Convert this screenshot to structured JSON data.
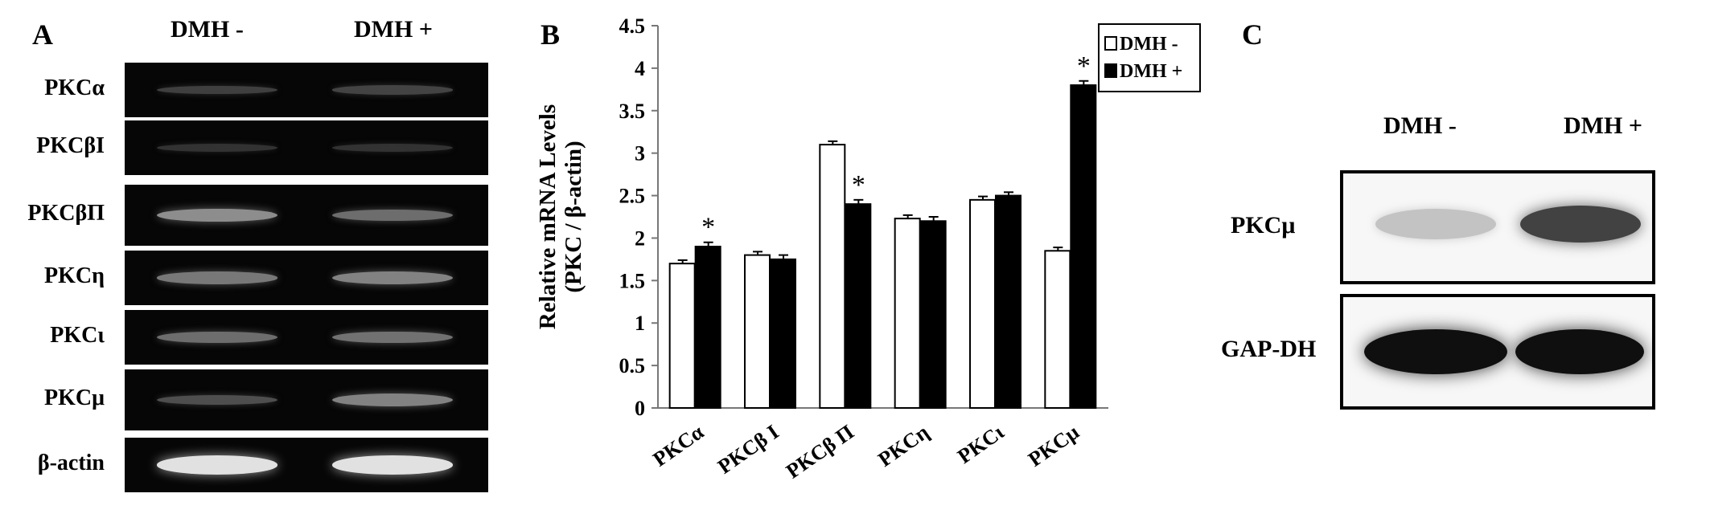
{
  "panel_a": {
    "letter": "A",
    "col_headers": [
      "DMH -",
      "DMH +"
    ],
    "rows": [
      {
        "label": "PKCα",
        "intensity": [
          0.18,
          0.2
        ]
      },
      {
        "label": "PKCβI",
        "intensity": [
          0.12,
          0.12
        ]
      },
      {
        "label": "PKCβΠ",
        "intensity": [
          0.55,
          0.4
        ]
      },
      {
        "label": "PKCη",
        "intensity": [
          0.45,
          0.5
        ]
      },
      {
        "label": "PKCι",
        "intensity": [
          0.4,
          0.42
        ]
      },
      {
        "label": "PKCμ",
        "intensity": [
          0.25,
          0.5
        ]
      },
      {
        "label": "β-actin",
        "intensity": [
          0.95,
          0.95
        ]
      }
    ]
  },
  "panel_b": {
    "letter": "B"
  },
  "chart_data": {
    "type": "bar",
    "title": "",
    "xlabel": "",
    "ylabel": "Relative mRNA Levels",
    "ylabel2": "(PKC / β-actin)",
    "ylim": [
      0,
      4.5
    ],
    "yticks": [
      0,
      0.5,
      1,
      1.5,
      2,
      2.5,
      3,
      3.5,
      4,
      4.5
    ],
    "categories": [
      "PKCα",
      "PKCβ I",
      "PKCβ Π",
      "PKCη",
      "PKCι",
      "PKCμ"
    ],
    "series": [
      {
        "name": "DMH -",
        "fill": "#ffffff",
        "values": [
          1.7,
          1.8,
          3.1,
          2.23,
          2.45,
          1.85
        ],
        "errors": [
          0.04,
          0.04,
          0.04,
          0.04,
          0.04,
          0.04
        ]
      },
      {
        "name": "DMH +",
        "fill": "#000000",
        "values": [
          1.9,
          1.75,
          2.4,
          2.2,
          2.5,
          3.8
        ],
        "errors": [
          0.05,
          0.05,
          0.05,
          0.05,
          0.04,
          0.05
        ]
      }
    ],
    "significance": [
      {
        "category_index": 0,
        "series_index": 1,
        "mark": "*"
      },
      {
        "category_index": 2,
        "series_index": 1,
        "mark": "*"
      },
      {
        "category_index": 5,
        "series_index": 1,
        "mark": "*"
      }
    ],
    "legend": "top-right",
    "grid": false
  },
  "panel_c": {
    "letter": "C",
    "col_headers": [
      "DMH -",
      "DMH +"
    ],
    "rows": [
      {
        "label": "PKCμ",
        "intensity": [
          0.12,
          0.75
        ]
      },
      {
        "label": "GAP-DH",
        "intensity": [
          1.0,
          1.0
        ]
      }
    ]
  }
}
